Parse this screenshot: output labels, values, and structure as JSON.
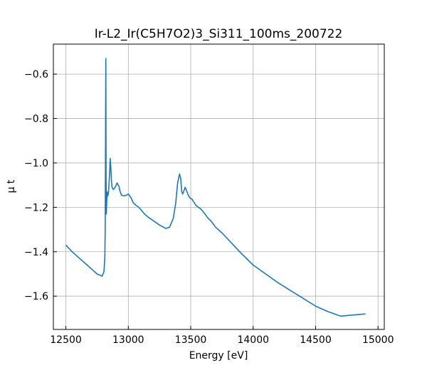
{
  "chart_data": {
    "type": "line",
    "title": "Ir-L2_Ir(C5H7O2)3_Si311_100ms_200722",
    "xlabel": "Energy [eV]",
    "ylabel": "μ t",
    "xlim": [
      12400,
      15050
    ],
    "ylim": [
      -1.75,
      -0.465
    ],
    "xticks": [
      12500,
      13000,
      13500,
      14000,
      14500,
      15000
    ],
    "yticks": [
      -0.6,
      -0.8,
      -1.0,
      -1.2,
      -1.4,
      -1.6
    ],
    "xtick_labels": [
      "12500",
      "13000",
      "13500",
      "14000",
      "14500",
      "15000"
    ],
    "ytick_labels": [
      "−0.6",
      "−0.8",
      "−1.0",
      "−1.2",
      "−1.4",
      "−1.6"
    ],
    "grid": true,
    "series": [
      {
        "color": "#1f77b4",
        "x": [
          12500,
          12550,
          12600,
          12650,
          12700,
          12750,
          12790,
          12805,
          12812,
          12815,
          12817,
          12819,
          12820,
          12821,
          12822,
          12824,
          12826,
          12830,
          12835,
          12840,
          12845,
          12850,
          12855,
          12860,
          12865,
          12870,
          12880,
          12895,
          12910,
          12925,
          12935,
          12945,
          12960,
          12980,
          13000,
          13020,
          13040,
          13060,
          13080,
          13100,
          13130,
          13160,
          13200,
          13250,
          13300,
          13330,
          13360,
          13380,
          13395,
          13410,
          13420,
          13428,
          13435,
          13440,
          13445,
          13450,
          13455,
          13460,
          13470,
          13480,
          13490,
          13500,
          13510,
          13520,
          13540,
          13560,
          13580,
          13600,
          13620,
          13640,
          13660,
          13680,
          13700,
          13750,
          13800,
          13850,
          13900,
          14000,
          14100,
          14200,
          14300,
          14400,
          14500,
          14600,
          14700,
          14800,
          14900
        ],
        "y": [
          -1.37,
          -1.4,
          -1.425,
          -1.45,
          -1.475,
          -1.5,
          -1.51,
          -1.49,
          -1.43,
          -1.3,
          -1.0,
          -0.7,
          -0.53,
          -0.72,
          -1.05,
          -1.23,
          -1.2,
          -1.13,
          -1.15,
          -1.14,
          -1.1,
          -1.05,
          -0.98,
          -1.02,
          -1.08,
          -1.11,
          -1.12,
          -1.11,
          -1.09,
          -1.105,
          -1.13,
          -1.145,
          -1.148,
          -1.147,
          -1.14,
          -1.155,
          -1.18,
          -1.19,
          -1.198,
          -1.21,
          -1.23,
          -1.245,
          -1.26,
          -1.28,
          -1.295,
          -1.29,
          -1.25,
          -1.18,
          -1.09,
          -1.05,
          -1.07,
          -1.13,
          -1.14,
          -1.135,
          -1.125,
          -1.12,
          -1.11,
          -1.115,
          -1.13,
          -1.145,
          -1.155,
          -1.16,
          -1.163,
          -1.172,
          -1.19,
          -1.2,
          -1.207,
          -1.22,
          -1.235,
          -1.25,
          -1.26,
          -1.275,
          -1.29,
          -1.315,
          -1.345,
          -1.375,
          -1.405,
          -1.46,
          -1.5,
          -1.54,
          -1.575,
          -1.61,
          -1.645,
          -1.67,
          -1.69,
          -1.685,
          -1.68
        ]
      }
    ]
  }
}
